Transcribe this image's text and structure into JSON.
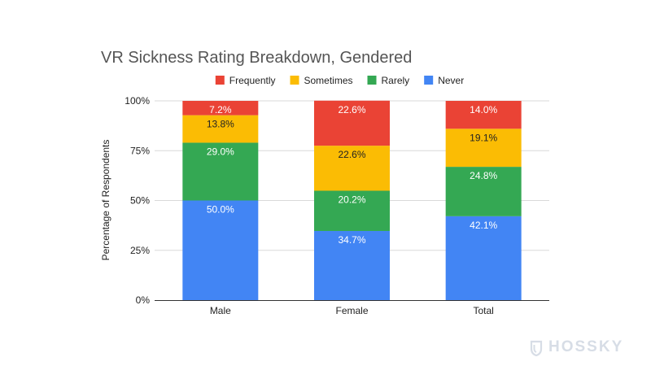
{
  "chart_data": {
    "type": "bar",
    "stacked": true,
    "title": "VR Sickness Rating Breakdown, Gendered",
    "xlabel": "",
    "ylabel": "Percentage of Respondents",
    "ylim": [
      0,
      100
    ],
    "yticks": [
      "0%",
      "25%",
      "50%",
      "75%",
      "100%"
    ],
    "categories": [
      "Male",
      "Female",
      "Total"
    ],
    "legend_position": "top",
    "grid": true,
    "series": [
      {
        "name": "Never",
        "color": "#4285F4",
        "label_color": "#ffffff",
        "values": [
          50.0,
          34.7,
          42.1
        ],
        "labels": [
          "50.0%",
          "34.7%",
          "42.1%"
        ]
      },
      {
        "name": "Rarely",
        "color": "#34A853",
        "label_color": "#ffffff",
        "values": [
          29.0,
          20.2,
          24.8
        ],
        "labels": [
          "29.0%",
          "20.2%",
          "24.8%"
        ]
      },
      {
        "name": "Sometimes",
        "color": "#FBBC04",
        "label_color": "#222222",
        "values": [
          13.8,
          22.6,
          19.1
        ],
        "labels": [
          "13.8%",
          "22.6%",
          "19.1%"
        ]
      },
      {
        "name": "Frequently",
        "color": "#EA4335",
        "label_color": "#ffffff",
        "values": [
          7.2,
          22.6,
          14.0
        ],
        "labels": [
          "7.2%",
          "22.6%",
          "14.0%"
        ]
      }
    ],
    "legend_order": [
      "Frequently",
      "Sometimes",
      "Rarely",
      "Never"
    ]
  },
  "watermark": {
    "text": "HOSSKY",
    "icon": "shield-logo-icon"
  }
}
